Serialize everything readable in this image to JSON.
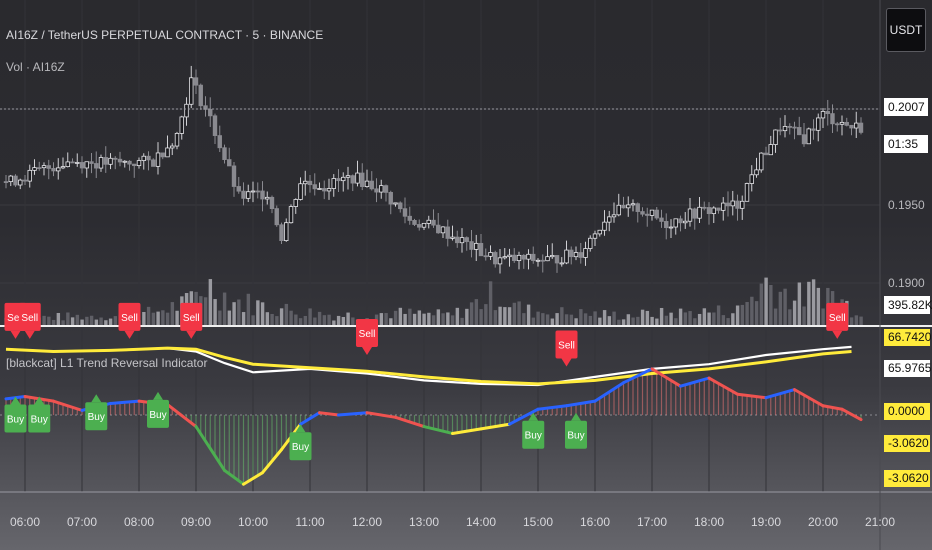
{
  "header": {
    "symbol_title": "AI16Z / TetherUS PERPETUAL CONTRACT · 5 · BINANCE",
    "volume_label": "Vol · AI16Z",
    "indicator_label": "[blackcat] L1 Trend Reversal Indicator",
    "currency_button": "USDT"
  },
  "price_scale": {
    "ticks": [
      "0.1950",
      "0.1900"
    ],
    "last_price": "0.2007",
    "countdown": "01:35",
    "volume_tag": "395.82K"
  },
  "indicator_scale": {
    "upper_tag": "66.7420",
    "upper_tag2": "65.9765",
    "zero_tag": "0.0000",
    "lower_tag": "-3.0620",
    "lower_tag2": "-3.0620"
  },
  "colors": {
    "background": "#2a2a2e",
    "buy": "#4caf50",
    "sell": "#f23645",
    "yellow_line": "#ffeb3b",
    "white_line": "#ffffff",
    "up_segment": "#2962ff",
    "down_segment": "#ef5350"
  },
  "chart_data": {
    "type": "candlestick",
    "time_axis": {
      "labels": [
        "06:00",
        "07:00",
        "08:00",
        "09:00",
        "10:00",
        "11:00",
        "12:00",
        "13:00",
        "14:00",
        "15:00",
        "16:00",
        "17:00",
        "18:00",
        "19:00",
        "20:00",
        "21:00"
      ],
      "interval_minutes": 5
    },
    "price_axis": {
      "ticks": [
        0.195,
        0.19
      ],
      "last_price": 0.2007
    },
    "price_path": [
      [
        "05:45",
        0.1965
      ],
      [
        "06:15",
        0.1972
      ],
      [
        "06:45",
        0.1978
      ],
      [
        "07:15",
        0.1977
      ],
      [
        "07:45",
        0.1977
      ],
      [
        "08:15",
        0.1978
      ],
      [
        "08:40",
        0.1995
      ],
      [
        "08:55",
        0.203
      ],
      [
        "09:15",
        0.2005
      ],
      [
        "09:45",
        0.1955
      ],
      [
        "10:15",
        0.1958
      ],
      [
        "10:30",
        0.193
      ],
      [
        "10:50",
        0.1965
      ],
      [
        "11:15",
        0.1962
      ],
      [
        "11:45",
        0.1968
      ],
      [
        "12:15",
        0.196
      ],
      [
        "12:45",
        0.194
      ],
      [
        "13:15",
        0.1935
      ],
      [
        "13:45",
        0.1925
      ],
      [
        "14:15",
        0.1915
      ],
      [
        "14:45",
        0.1915
      ],
      [
        "15:15",
        0.1915
      ],
      [
        "15:45",
        0.192
      ],
      [
        "16:15",
        0.1945
      ],
      [
        "16:45",
        0.1948
      ],
      [
        "17:15",
        0.1938
      ],
      [
        "17:45",
        0.1945
      ],
      [
        "18:30",
        0.195
      ],
      [
        "18:50",
        0.1975
      ],
      [
        "19:15",
        0.2
      ],
      [
        "19:40",
        0.1993
      ],
      [
        "20:00",
        0.2008
      ],
      [
        "20:30",
        0.2
      ]
    ],
    "volume_path": [
      [
        "06:00",
        0.15
      ],
      [
        "07:00",
        0.18
      ],
      [
        "08:00",
        0.2
      ],
      [
        "08:50",
        0.45
      ],
      [
        "09:10",
        0.85
      ],
      [
        "09:40",
        0.5
      ],
      [
        "10:40",
        0.3
      ],
      [
        "11:30",
        0.2
      ],
      [
        "12:30",
        0.25
      ],
      [
        "13:30",
        0.2
      ],
      [
        "14:15",
        0.65
      ],
      [
        "14:45",
        0.3
      ],
      [
        "15:30",
        0.25
      ],
      [
        "16:30",
        0.2
      ],
      [
        "17:30",
        0.25
      ],
      [
        "18:30",
        0.3
      ],
      [
        "19:00",
        0.9
      ],
      [
        "19:30",
        0.55
      ],
      [
        "20:00",
        0.75
      ],
      [
        "20:30",
        0.35
      ]
    ],
    "indicator": {
      "name": "[blackcat] L1 Trend Reversal Indicator",
      "levels": {
        "upper": 66.742,
        "upper2": 65.9765,
        "zero": 0.0,
        "lower": -3.062
      },
      "yellow_line": [
        [
          "05:40",
          57
        ],
        [
          "06:30",
          55
        ],
        [
          "07:30",
          56
        ],
        [
          "08:30",
          58
        ],
        [
          "09:00",
          57
        ],
        [
          "09:30",
          50
        ],
        [
          "10:00",
          44
        ],
        [
          "11:00",
          41
        ],
        [
          "12:00",
          38
        ],
        [
          "13:00",
          33
        ],
        [
          "14:00",
          29
        ],
        [
          "15:00",
          27
        ],
        [
          "16:00",
          30
        ],
        [
          "17:00",
          36
        ],
        [
          "18:00",
          40
        ],
        [
          "19:00",
          46
        ],
        [
          "20:00",
          53
        ],
        [
          "20:30",
          55
        ]
      ],
      "white_line": [
        [
          "05:40",
          57
        ],
        [
          "06:30",
          55
        ],
        [
          "07:30",
          56
        ],
        [
          "08:30",
          58
        ],
        [
          "09:00",
          55
        ],
        [
          "09:30",
          45
        ],
        [
          "10:00",
          37
        ],
        [
          "11:00",
          40
        ],
        [
          "12:00",
          36
        ],
        [
          "13:00",
          30
        ],
        [
          "14:00",
          27
        ],
        [
          "15:00",
          26
        ],
        [
          "16:00",
          33
        ],
        [
          "17:00",
          40
        ],
        [
          "18:00",
          44
        ],
        [
          "19:00",
          52
        ],
        [
          "20:00",
          57
        ],
        [
          "20:30",
          59
        ]
      ],
      "oscillator": [
        [
          "05:40",
          14
        ],
        [
          "06:00",
          16
        ],
        [
          "06:30",
          12
        ],
        [
          "07:00",
          4
        ],
        [
          "07:30",
          10
        ],
        [
          "08:00",
          12
        ],
        [
          "08:30",
          9
        ],
        [
          "09:00",
          -10
        ],
        [
          "09:30",
          -48
        ],
        [
          "09:50",
          -60
        ],
        [
          "10:10",
          -50
        ],
        [
          "10:30",
          -30
        ],
        [
          "10:50",
          -8
        ],
        [
          "11:10",
          2
        ],
        [
          "11:30",
          0
        ],
        [
          "12:00",
          2
        ],
        [
          "12:30",
          -2
        ],
        [
          "13:00",
          -10
        ],
        [
          "13:30",
          -16
        ],
        [
          "14:00",
          -12
        ],
        [
          "14:30",
          -8
        ],
        [
          "15:00",
          5
        ],
        [
          "15:30",
          8
        ],
        [
          "16:00",
          12
        ],
        [
          "16:30",
          28
        ],
        [
          "17:00",
          40
        ],
        [
          "17:30",
          25
        ],
        [
          "18:00",
          32
        ],
        [
          "18:30",
          18
        ],
        [
          "19:00",
          15
        ],
        [
          "19:30",
          22
        ],
        [
          "20:00",
          8
        ],
        [
          "20:20",
          5
        ],
        [
          "20:40",
          -4
        ]
      ],
      "signals": [
        {
          "label": "Sell",
          "time": "05:50",
          "value": 66
        },
        {
          "label": "Sell",
          "time": "06:05",
          "value": 66
        },
        {
          "label": "Sell",
          "time": "07:50",
          "value": 66
        },
        {
          "label": "Sell",
          "time": "08:55",
          "value": 66
        },
        {
          "label": "Sell",
          "time": "12:00",
          "value": 52
        },
        {
          "label": "Sell",
          "time": "15:30",
          "value": 42
        },
        {
          "label": "Sell",
          "time": "20:15",
          "value": 66
        },
        {
          "label": "Buy",
          "time": "05:50",
          "value": 16
        },
        {
          "label": "Buy",
          "time": "06:15",
          "value": 16
        },
        {
          "label": "Buy",
          "time": "07:15",
          "value": 18
        },
        {
          "label": "Buy",
          "time": "08:20",
          "value": 20
        },
        {
          "label": "Buy",
          "time": "10:50",
          "value": -8
        },
        {
          "label": "Buy",
          "time": "14:55",
          "value": 2
        },
        {
          "label": "Buy",
          "time": "15:40",
          "value": 2
        }
      ]
    }
  }
}
